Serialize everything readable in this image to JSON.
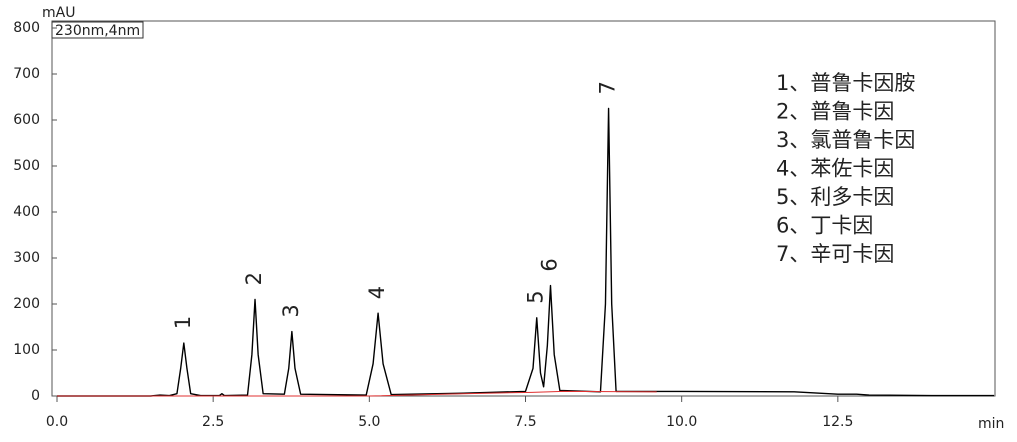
{
  "chart_data": {
    "type": "line",
    "y_label": "mAU",
    "x_label": "min",
    "detector": "230nm,4nm",
    "xlim": [
      0,
      15
    ],
    "ylim": [
      0,
      800
    ],
    "xticks": [
      {
        "value": 0,
        "label": "0.0"
      },
      2.5,
      {
        "value": 5,
        "label": "5.0"
      },
      7.5,
      {
        "value": 10,
        "label": "10.0"
      },
      12.5
    ],
    "yticks": [
      0,
      100,
      200,
      300,
      400,
      500,
      600,
      700,
      800
    ],
    "grid": false,
    "series": [
      {
        "color": "#000000",
        "x": [
          0,
          1.5,
          1.65,
          1.8,
          1.92,
          1.98,
          2.03,
          2.08,
          2.14,
          2.3,
          2.6,
          2.64,
          2.68,
          3.05,
          3.12,
          3.17,
          3.22,
          3.3,
          3.64,
          3.71,
          3.76,
          3.81,
          3.9,
          4.95,
          5.06,
          5.14,
          5.22,
          5.35,
          6.5,
          7.5,
          7.62,
          7.68,
          7.74,
          7.79,
          7.85,
          7.9,
          7.96,
          8.05,
          8.7,
          8.78,
          8.83,
          8.88,
          8.95,
          10,
          11.8,
          12.5,
          12.8,
          13,
          14,
          15
        ],
        "values": [
          0,
          0,
          2,
          1,
          5,
          60,
          115,
          60,
          5,
          1,
          1,
          5,
          1,
          2,
          90,
          210,
          90,
          5,
          4,
          60,
          140,
          60,
          4,
          2,
          70,
          180,
          70,
          3,
          6,
          10,
          60,
          170,
          50,
          20,
          110,
          240,
          90,
          12,
          9,
          200,
          625,
          200,
          10,
          10,
          9,
          4,
          4,
          2,
          1,
          1
        ]
      },
      {
        "color": "#e03030",
        "x": [
          0,
          5,
          6.5,
          7.6,
          8.1,
          9.6
        ],
        "values": [
          0,
          0,
          5,
          8,
          10,
          9
        ]
      }
    ],
    "peaks": [
      {
        "label": "1",
        "x": 2.03,
        "y": 115
      },
      {
        "label": "2",
        "x": 3.17,
        "y": 210
      },
      {
        "label": "3",
        "x": 3.76,
        "y": 140
      },
      {
        "label": "4",
        "x": 5.14,
        "y": 180
      },
      {
        "label": "5",
        "x": 7.68,
        "y": 170
      },
      {
        "label": "6",
        "x": 7.9,
        "y": 240
      },
      {
        "label": "7",
        "x": 8.83,
        "y": 625
      }
    ],
    "compounds": [
      "1、普鲁卡因胺",
      "2、普鲁卡因",
      "3、氯普鲁卡因",
      "4、苯佐卡因",
      "5、利多卡因",
      "6、丁卡因",
      "7、辛可卡因"
    ]
  }
}
